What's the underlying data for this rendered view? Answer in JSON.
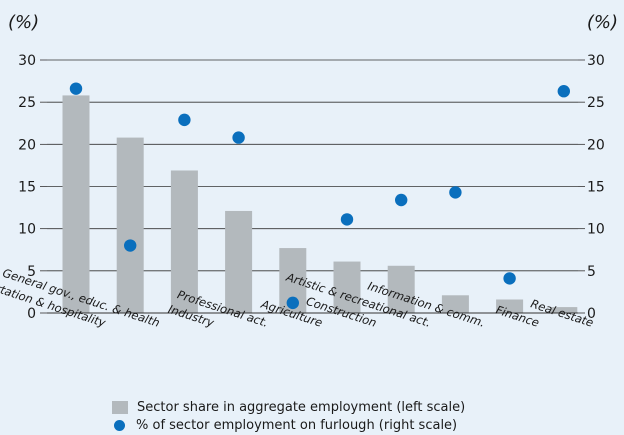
{
  "chart_data": {
    "type": "bar",
    "left_axis_label": "(%)",
    "right_axis_label": "(%)",
    "categories": [
      "Retail, transportation & hospitality",
      "General gov., educ. & health",
      "Industry",
      "Professional act.",
      "Agriculture",
      "Construction",
      "Artistic & recreational act.",
      "Information & comm.",
      "Finance",
      "Real estate"
    ],
    "series": [
      {
        "name": "Sector share in aggregate employment (left scale)",
        "type": "bar",
        "axis": "left",
        "color": "#b3b9bd",
        "values": [
          25.8,
          20.8,
          16.9,
          12.1,
          7.7,
          6.1,
          5.6,
          2.1,
          1.6,
          0.7
        ]
      },
      {
        "name": "% of sector employment on furlough (right scale)",
        "type": "scatter",
        "axis": "right",
        "color": "#0a6fbd",
        "values": [
          26.6,
          8.0,
          22.9,
          20.8,
          1.2,
          11.1,
          13.4,
          14.3,
          4.1,
          26.3
        ]
      }
    ],
    "ylim_left": [
      0,
      30
    ],
    "ylim_right": [
      0,
      30
    ],
    "yticks": [
      0,
      5,
      10,
      15,
      20,
      25,
      30
    ],
    "grid": true,
    "legend_position": "bottom"
  }
}
